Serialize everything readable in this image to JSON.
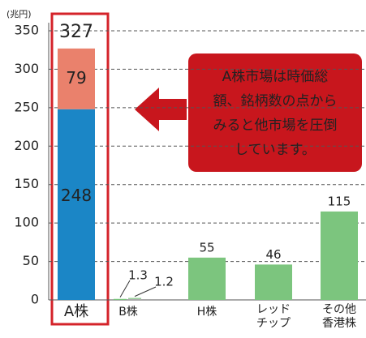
{
  "chart_data": {
    "type": "bar",
    "stacked": true,
    "unit_label": "(兆円)",
    "categories": [
      [
        "A株"
      ],
      [
        "B株"
      ],
      [
        "H株"
      ],
      [
        "レッド",
        "チップ"
      ],
      [
        "その他",
        "香港株"
      ]
    ],
    "series": [
      {
        "values": [
          248,
          1.3,
          55,
          46,
          115
        ],
        "colors": [
          "#1b86c6",
          "#7cc57e",
          "#7cc57e",
          "#7cc57e",
          "#7cc57e"
        ]
      },
      {
        "values": [
          79,
          1.2,
          null,
          null,
          null
        ],
        "colors": [
          "#ea816c",
          "#7cc57e",
          null,
          null,
          null
        ]
      }
    ],
    "total_label": "327",
    "ylim": [
      0,
      350
    ],
    "yticks": [
      0,
      50,
      100,
      150,
      200,
      250,
      300,
      350
    ],
    "grid": true,
    "annotation": [
      "A株市場は時価総",
      "額、銘柄数の点から",
      "みると他市場を圧倒",
      "しています。"
    ]
  }
}
